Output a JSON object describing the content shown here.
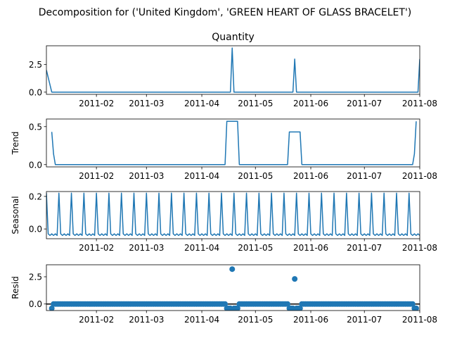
{
  "figure": {
    "suptitle": "Decomposition for ('United Kingdom', 'GREEN HEART OF GLASS BRACELET')"
  },
  "colors": {
    "series": "#1f77b4",
    "axis": "#000000",
    "zero_line": "#000000"
  },
  "chart_data": [
    {
      "type": "line",
      "title": "Quantity",
      "ylabel": "",
      "x_start": "2011-01-04",
      "x_end": "2011-08-01",
      "xlim": [
        "2011-01-04",
        "2011-08-01"
      ],
      "ylim": [
        -0.2,
        4.2
      ],
      "xticks": [
        "2011-02",
        "2011-03",
        "2011-04",
        "2011-05",
        "2011-06",
        "2011-07",
        "2011-08"
      ],
      "yticks": [
        0.0,
        2.5
      ],
      "ytick_labels": [
        "0.0",
        "2.5"
      ],
      "points": [
        {
          "x": "2011-01-04",
          "y": 2.0
        },
        {
          "x": "2011-01-07",
          "y": 0
        },
        {
          "x": "2011-04-17",
          "y": 0
        },
        {
          "x": "2011-04-18",
          "y": 4.0
        },
        {
          "x": "2011-04-19",
          "y": 0
        },
        {
          "x": "2011-05-22",
          "y": 0
        },
        {
          "x": "2011-05-23",
          "y": 3.0
        },
        {
          "x": "2011-05-24",
          "y": 0
        },
        {
          "x": "2011-07-31",
          "y": 0
        },
        {
          "x": "2011-08-01",
          "y": 3.0
        }
      ],
      "grid": false
    },
    {
      "type": "line",
      "title": "",
      "ylabel": "Trend",
      "xlim": [
        "2011-01-04",
        "2011-08-01"
      ],
      "ylim": [
        -0.03,
        0.6
      ],
      "xticks": [
        "2011-02",
        "2011-03",
        "2011-04",
        "2011-05",
        "2011-06",
        "2011-07",
        "2011-08"
      ],
      "yticks": [
        0.0,
        0.5
      ],
      "ytick_labels": [
        "0.0",
        "0.5"
      ],
      "points": [
        {
          "x": "2011-01-07",
          "y": 0.43
        },
        {
          "x": "2011-01-08",
          "y": 0.14
        },
        {
          "x": "2011-01-09",
          "y": 0
        },
        {
          "x": "2011-04-14",
          "y": 0
        },
        {
          "x": "2011-04-15",
          "y": 0.57
        },
        {
          "x": "2011-04-21",
          "y": 0.57
        },
        {
          "x": "2011-04-22",
          "y": 0
        },
        {
          "x": "2011-05-19",
          "y": 0
        },
        {
          "x": "2011-05-20",
          "y": 0.43
        },
        {
          "x": "2011-05-26",
          "y": 0.43
        },
        {
          "x": "2011-05-27",
          "y": 0
        },
        {
          "x": "2011-07-28",
          "y": 0
        },
        {
          "x": "2011-07-29",
          "y": 0.14
        },
        {
          "x": "2011-07-30",
          "y": 0.57
        }
      ],
      "grid": false
    },
    {
      "type": "line",
      "title": "",
      "ylabel": "Seasonal",
      "xlim": [
        "2011-01-04",
        "2011-08-01"
      ],
      "ylim": [
        -0.06,
        0.23
      ],
      "xticks": [
        "2011-02",
        "2011-03",
        "2011-04",
        "2011-05",
        "2011-06",
        "2011-07",
        "2011-08"
      ],
      "yticks": [
        0.0,
        0.2
      ],
      "ytick_labels": [
        "0.0",
        "0.2"
      ],
      "period": 7,
      "pattern": [
        0.22,
        -0.03,
        -0.04,
        -0.03,
        -0.04,
        -0.03,
        -0.04
      ],
      "grid": false
    },
    {
      "type": "scatter",
      "title": "",
      "ylabel": "Resid",
      "xlim": [
        "2011-01-04",
        "2011-08-01"
      ],
      "ylim": [
        -0.6,
        3.6
      ],
      "xticks": [
        "2011-02",
        "2011-03",
        "2011-04",
        "2011-05",
        "2011-06",
        "2011-07",
        "2011-08"
      ],
      "yticks": [
        0.0,
        2.5
      ],
      "ytick_labels": [
        "0.0",
        "2.5"
      ],
      "zero_line": true,
      "points_outliers": [
        {
          "x": "2011-04-18",
          "y": 3.2
        },
        {
          "x": "2011-05-23",
          "y": 2.3
        }
      ],
      "negative_ranges": [
        {
          "from": "2011-04-15",
          "to": "2011-04-21",
          "y": -0.4
        },
        {
          "from": "2011-05-20",
          "to": "2011-05-26",
          "y": -0.4
        },
        {
          "from": "2011-07-29",
          "to": "2011-07-30",
          "y": -0.4
        }
      ],
      "first_point": {
        "x": "2011-01-07",
        "y": -0.4
      },
      "baseline_y": 0.0,
      "baseline_end": "2011-07-30",
      "grid": false
    }
  ]
}
